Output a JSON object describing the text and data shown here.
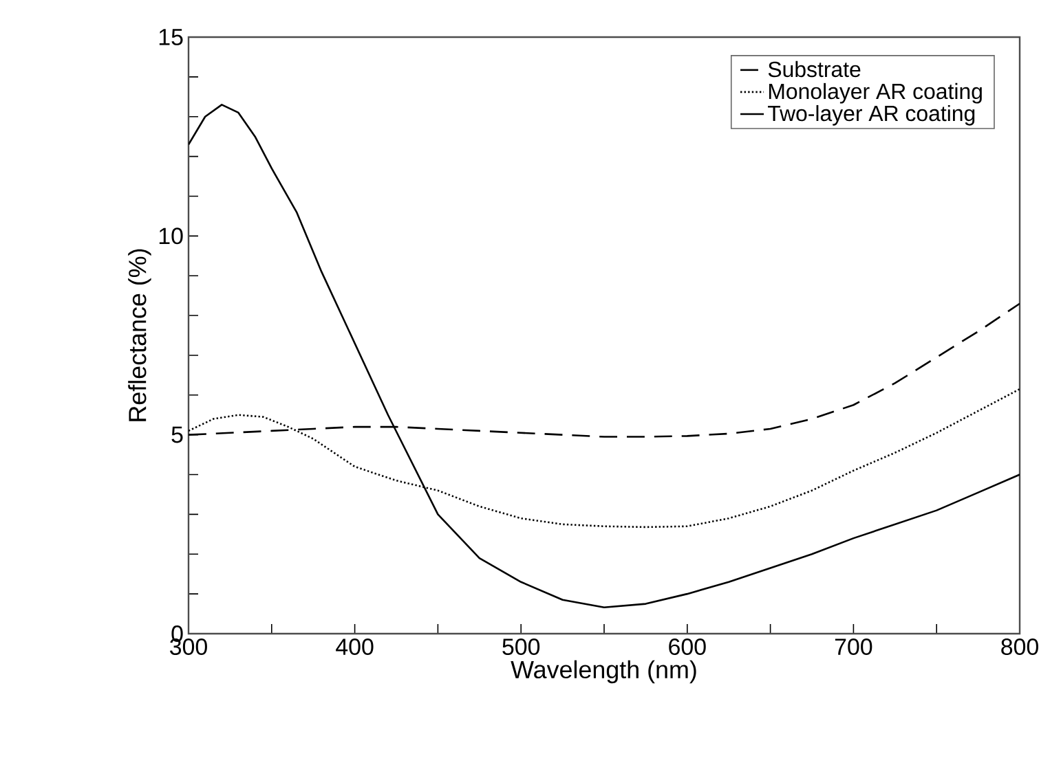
{
  "chart_data": {
    "type": "line",
    "xlabel": "Wavelength (nm)",
    "ylabel": "Reflectance (%)",
    "xlim": [
      300,
      800
    ],
    "ylim": [
      0,
      15
    ],
    "xticks": [
      300,
      {
        "value": 350,
        "label": null
      },
      400,
      {
        "value": 450,
        "label": null
      },
      500,
      {
        "value": 550,
        "label": null
      },
      600,
      {
        "value": 650,
        "label": null
      },
      700,
      {
        "value": 750,
        "label": null
      },
      800
    ],
    "yticks": [
      0,
      {
        "value": 1,
        "label": null
      },
      {
        "value": 2,
        "label": null
      },
      {
        "value": 3,
        "label": null
      },
      {
        "value": 4,
        "label": null
      },
      5,
      {
        "value": 6,
        "label": null
      },
      {
        "value": 7,
        "label": null
      },
      {
        "value": 8,
        "label": null
      },
      {
        "value": 9,
        "label": null
      },
      10,
      {
        "value": 11,
        "label": null
      },
      {
        "value": 12,
        "label": null
      },
      {
        "value": 13,
        "label": null
      },
      {
        "value": 14,
        "label": null
      },
      15
    ],
    "legend": "top right",
    "grid": false,
    "marker": "none",
    "series": [
      {
        "name": "Substrate",
        "color": "#000000",
        "line_style": "dashed",
        "x": [
          300,
          325,
          350,
          375,
          400,
          425,
          450,
          475,
          500,
          525,
          550,
          575,
          600,
          625,
          650,
          675,
          700,
          725,
          750,
          775,
          800
        ],
        "values": [
          5.0,
          5.05,
          5.1,
          5.15,
          5.2,
          5.2,
          5.15,
          5.1,
          5.05,
          5.0,
          4.95,
          4.95,
          4.97,
          5.03,
          5.15,
          5.4,
          5.75,
          6.3,
          6.95,
          7.6,
          8.3
        ]
      },
      {
        "name": "Monolayer AR coating",
        "color": "#000000",
        "line_style": "dotted",
        "x": [
          300,
          315,
          330,
          345,
          360,
          375,
          400,
          425,
          450,
          475,
          500,
          525,
          550,
          575,
          600,
          625,
          650,
          675,
          700,
          725,
          750,
          775,
          800
        ],
        "values": [
          5.1,
          5.4,
          5.5,
          5.45,
          5.2,
          4.9,
          4.2,
          3.85,
          3.6,
          3.2,
          2.9,
          2.75,
          2.7,
          2.68,
          2.7,
          2.9,
          3.2,
          3.6,
          4.1,
          4.55,
          5.05,
          5.6,
          6.15
        ]
      },
      {
        "name": "Two-layer AR coating",
        "color": "#000000",
        "line_style": "solid",
        "x": [
          300,
          310,
          320,
          330,
          340,
          350,
          365,
          380,
          400,
          420,
          450,
          475,
          500,
          525,
          550,
          575,
          600,
          625,
          650,
          675,
          700,
          725,
          750,
          775,
          800
        ],
        "values": [
          12.3,
          13.0,
          13.3,
          13.1,
          12.5,
          11.7,
          10.6,
          9.1,
          7.3,
          5.5,
          3.0,
          1.9,
          1.3,
          0.85,
          0.66,
          0.75,
          1.0,
          1.3,
          1.65,
          2.0,
          2.4,
          2.75,
          3.1,
          3.55,
          4.0
        ]
      }
    ]
  }
}
